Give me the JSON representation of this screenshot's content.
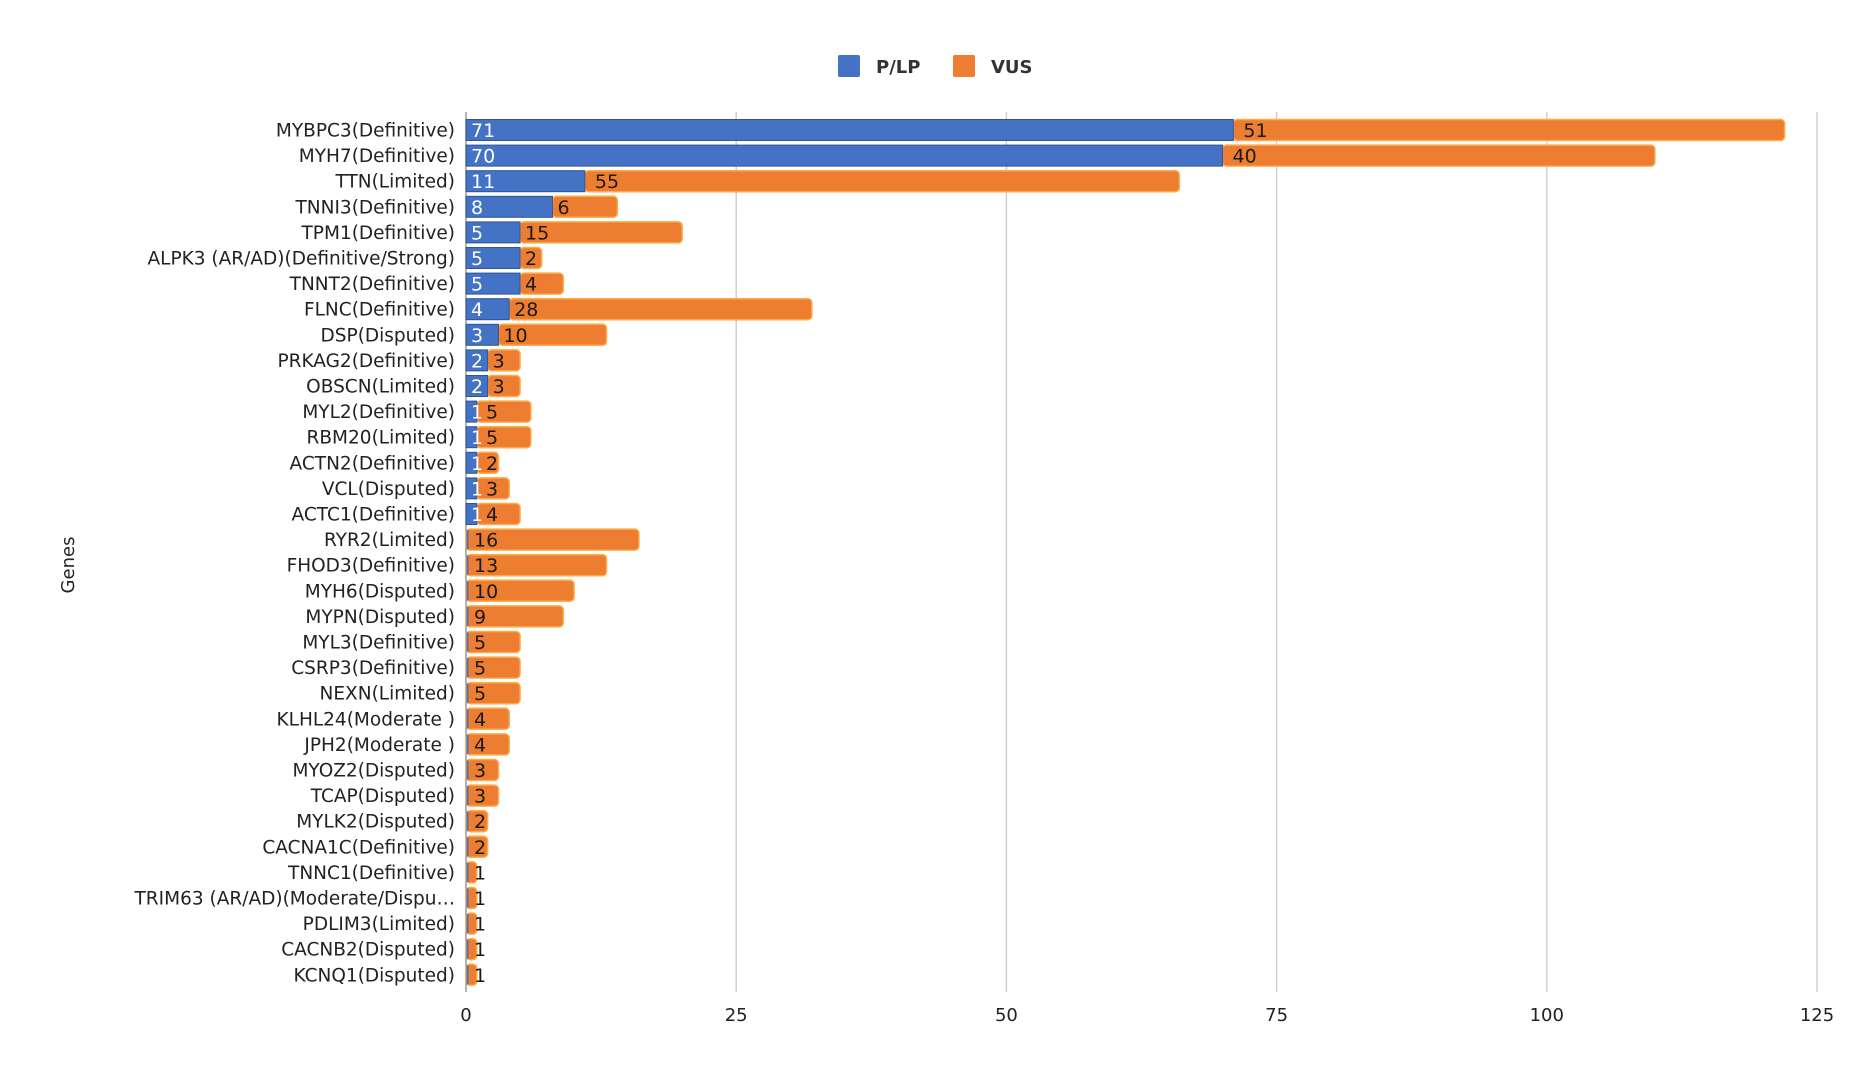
{
  "chart_data": {
    "type": "bar",
    "orientation": "horizontal",
    "stacked": true,
    "title": "",
    "xlabel": "",
    "ylabel": "Genes",
    "xlim": [
      0,
      125
    ],
    "xticks": [
      0,
      25,
      50,
      75,
      100,
      125
    ],
    "grid": true,
    "legend_position": "top-center",
    "categories": [
      "MYBPC3(Definitive)",
      "MYH7(Definitive)",
      "TTN(Limited)",
      "TNNI3(Definitive)",
      "TPM1(Definitive)",
      "ALPK3 (AR/AD)(Definitive/Strong)",
      "TNNT2(Definitive)",
      "FLNC(Definitive)",
      "DSP(Disputed)",
      "PRKAG2(Definitive)",
      "OBSCN(Limited)",
      "MYL2(Definitive)",
      "RBM20(Limited)",
      "ACTN2(Definitive)",
      "VCL(Disputed)",
      "ACTC1(Definitive)",
      "RYR2(Limited)",
      "FHOD3(Definitive)",
      "MYH6(Disputed)",
      "MYPN(Disputed)",
      "MYL3(Definitive)",
      "CSRP3(Definitive)",
      "NEXN(Limited)",
      "KLHL24(Moderate )",
      "JPH2(Moderate )",
      "MYOZ2(Disputed)",
      "TCAP(Disputed)",
      "MYLK2(Disputed)",
      "CACNA1C(Definitive)",
      "TNNC1(Definitive)",
      "TRIM63 (AR/AD)(Moderate/Dispu…",
      "PDLIM3(Limited)",
      "CACNB2(Disputed)",
      "KCNQ1(Disputed)"
    ],
    "series": [
      {
        "name": "P/LP",
        "color": "#4472c4",
        "values": [
          71,
          70,
          11,
          8,
          5,
          5,
          5,
          4,
          3,
          2,
          2,
          1,
          1,
          1,
          1,
          1,
          0,
          0,
          0,
          0,
          0,
          0,
          0,
          0,
          0,
          0,
          0,
          0,
          0,
          0,
          0,
          0,
          0,
          0
        ]
      },
      {
        "name": "VUS",
        "color": "#ed7d31",
        "values": [
          51,
          40,
          55,
          6,
          15,
          2,
          4,
          28,
          10,
          3,
          3,
          5,
          5,
          2,
          3,
          4,
          16,
          13,
          10,
          9,
          5,
          5,
          5,
          4,
          4,
          3,
          3,
          2,
          2,
          1,
          1,
          1,
          1,
          1
        ]
      }
    ]
  }
}
